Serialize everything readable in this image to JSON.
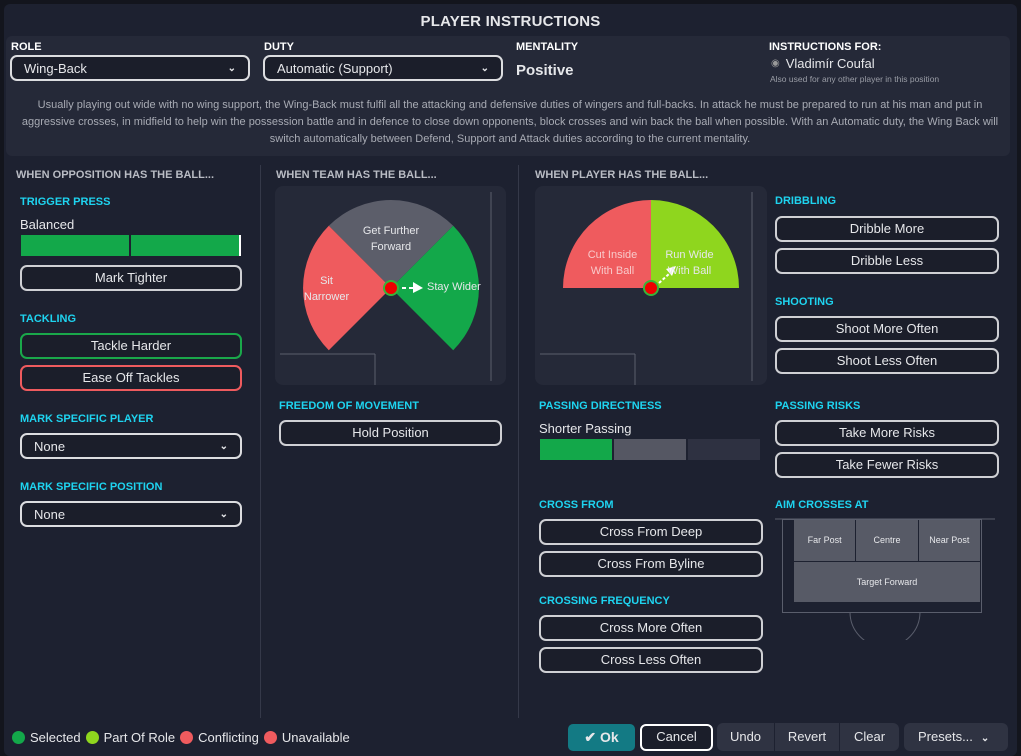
{
  "title": "PLAYER INSTRUCTIONS",
  "header": {
    "role_label": "ROLE",
    "role_value": "Wing-Back",
    "duty_label": "DUTY",
    "duty_value": "Automatic (Support)",
    "mentality_label": "MENTALITY",
    "mentality_value": "Positive",
    "for_label": "INSTRUCTIONS FOR:",
    "player": "Vladimír Coufal",
    "for_note": "Also used for any other player in this position",
    "description": "Usually playing out wide with no wing support, the Wing-Back must fulfil all the attacking and defensive duties of wingers and full-backs. In attack he must be prepared to run at his man and put in aggressive crosses, in midfield to help win the possession battle and in defence to close down opponents, block crosses and win back the ball when possible. With an Automatic duty, the Wing Back will switch automatically between Defend, Support and Attack duties according to the current mentality."
  },
  "opposition": {
    "heading": "WHEN OPPOSITION HAS THE BALL...",
    "trigger_press": "TRIGGER PRESS",
    "trigger_value": "Balanced",
    "trigger_level": 1.0,
    "mark_tighter": "Mark Tighter",
    "tackling": "TACKLING",
    "tackle_harder": "Tackle Harder",
    "ease_off": "Ease Off Tackles",
    "mark_player": "MARK SPECIFIC PLAYER",
    "mark_player_value": "None",
    "mark_position": "MARK SPECIFIC POSITION",
    "mark_position_value": "None"
  },
  "team": {
    "heading": "WHEN TEAM HAS THE BALL...",
    "get_forward": "Get Further Forward",
    "sit_narrower": "Sit Narrower",
    "stay_wider": "Stay Wider",
    "freedom": "FREEDOM OF MOVEMENT",
    "hold_position": "Hold Position"
  },
  "player": {
    "heading": "WHEN PLAYER HAS THE BALL...",
    "cut_inside": "Cut Inside With Ball",
    "run_wide": "Run Wide With Ball",
    "passing_directness": "PASSING DIRECTNESS",
    "passing_value": "Shorter Passing",
    "passing_level": 1,
    "passing_steps": 3,
    "cross_from": "CROSS FROM",
    "cross_deep": "Cross From Deep",
    "cross_byline": "Cross From Byline",
    "crossing_freq": "CROSSING FREQUENCY",
    "cross_more": "Cross More Often",
    "cross_less": "Cross Less Often",
    "dribbling": "DRIBBLING",
    "dribble_more": "Dribble More",
    "dribble_less": "Dribble Less",
    "shooting": "SHOOTING",
    "shoot_more": "Shoot More Often",
    "shoot_less": "Shoot Less Often",
    "passing_risks": "PASSING RISKS",
    "more_risks": "Take More Risks",
    "fewer_risks": "Take Fewer Risks",
    "aim_crosses": "AIM CROSSES AT",
    "far_post": "Far Post",
    "centre": "Centre",
    "near_post": "Near Post",
    "target_forward": "Target Forward"
  },
  "legend": [
    {
      "label": "Selected",
      "color": "#13a84a"
    },
    {
      "label": "Part Of Role",
      "color": "#8fd61e"
    },
    {
      "label": "Conflicting",
      "color": "#ef5b5e"
    },
    {
      "label": "Unavailable",
      "color": "#ef5b5e"
    }
  ],
  "footer": {
    "ok": "Ok",
    "cancel": "Cancel",
    "undo": "Undo",
    "revert": "Revert",
    "clear": "Clear",
    "presets": "Presets..."
  }
}
